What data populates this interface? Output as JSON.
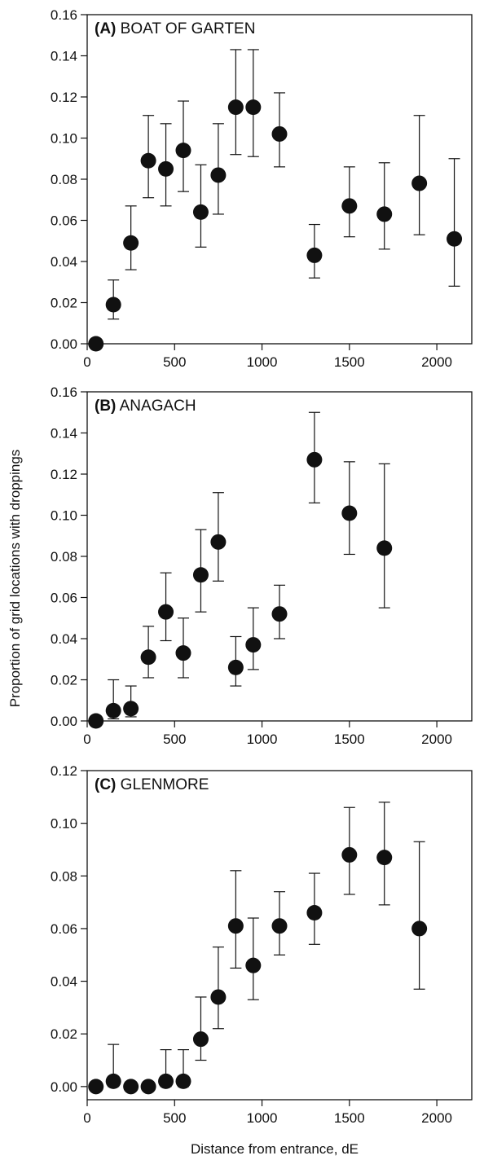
{
  "chart_data": [
    {
      "type": "scatter",
      "panel_letter": "(A)",
      "panel_name": "BOAT OF GARTEN",
      "xlim": [
        0,
        2200
      ],
      "ylim": [
        0,
        0.16
      ],
      "x_ticks": [
        0,
        500,
        1000,
        1500,
        2000
      ],
      "x_tick_labels": [
        "0",
        "500",
        "1000",
        "1500",
        "2000"
      ],
      "y_ticks": [
        0,
        0.02,
        0.04,
        0.06,
        0.08,
        0.1,
        0.12,
        0.14,
        0.16
      ],
      "y_tick_labels": [
        "0.00",
        "0.02",
        "0.04",
        "0.06",
        "0.08",
        "0.10",
        "0.12",
        "0.14",
        "0.16"
      ],
      "grid": false,
      "error_bars": true,
      "x": [
        50,
        150,
        250,
        350,
        450,
        550,
        650,
        750,
        850,
        950,
        1100,
        1300,
        1500,
        1700,
        1900,
        2100
      ],
      "y": [
        0.0,
        0.019,
        0.049,
        0.089,
        0.085,
        0.094,
        0.064,
        0.082,
        0.115,
        0.115,
        0.102,
        0.043,
        0.067,
        0.063,
        0.078,
        0.051
      ],
      "y_low": [
        0.0,
        0.012,
        0.036,
        0.071,
        0.067,
        0.074,
        0.047,
        0.063,
        0.092,
        0.091,
        0.086,
        0.032,
        0.052,
        0.046,
        0.053,
        0.028
      ],
      "y_high": [
        0.0,
        0.031,
        0.067,
        0.111,
        0.107,
        0.118,
        0.087,
        0.107,
        0.143,
        0.143,
        0.122,
        0.058,
        0.086,
        0.088,
        0.111,
        0.09
      ]
    },
    {
      "type": "scatter",
      "panel_letter": "(B)",
      "panel_name": "ANAGACH",
      "xlim": [
        0,
        2200
      ],
      "ylim": [
        0,
        0.16
      ],
      "x_ticks": [
        0,
        500,
        1000,
        1500,
        2000
      ],
      "x_tick_labels": [
        "0",
        "500",
        "1000",
        "1500",
        "2000"
      ],
      "y_ticks": [
        0,
        0.02,
        0.04,
        0.06,
        0.08,
        0.1,
        0.12,
        0.14,
        0.16
      ],
      "y_tick_labels": [
        "0.00",
        "0.02",
        "0.04",
        "0.06",
        "0.08",
        "0.10",
        "0.12",
        "0.14",
        "0.16"
      ],
      "grid": false,
      "error_bars": true,
      "x": [
        50,
        150,
        250,
        350,
        450,
        550,
        650,
        750,
        850,
        950,
        1100,
        1300,
        1500,
        1700
      ],
      "y": [
        0.0,
        0.005,
        0.006,
        0.031,
        0.053,
        0.033,
        0.071,
        0.087,
        0.026,
        0.037,
        0.052,
        0.127,
        0.101,
        0.084
      ],
      "y_low": [
        0.0,
        0.001,
        0.002,
        0.021,
        0.039,
        0.021,
        0.053,
        0.068,
        0.017,
        0.025,
        0.04,
        0.106,
        0.081,
        0.055
      ],
      "y_high": [
        0.0,
        0.02,
        0.017,
        0.046,
        0.072,
        0.05,
        0.093,
        0.111,
        0.041,
        0.055,
        0.066,
        0.15,
        0.126,
        0.125
      ]
    },
    {
      "type": "scatter",
      "panel_letter": "(C)",
      "panel_name": "GLENMORE",
      "xlim": [
        0,
        2200
      ],
      "ylim": [
        -0.005,
        0.12
      ],
      "x_ticks": [
        0,
        500,
        1000,
        1500,
        2000
      ],
      "x_tick_labels": [
        "0",
        "500",
        "1000",
        "1500",
        "2000"
      ],
      "y_ticks": [
        0,
        0.02,
        0.04,
        0.06,
        0.08,
        0.1,
        0.12
      ],
      "y_tick_labels": [
        "0.00",
        "0.02",
        "0.04",
        "0.06",
        "0.08",
        "0.10",
        "0.12"
      ],
      "grid": false,
      "error_bars": true,
      "x": [
        50,
        150,
        250,
        350,
        450,
        550,
        650,
        750,
        850,
        950,
        1100,
        1300,
        1500,
        1700,
        1900
      ],
      "y": [
        0.0,
        0.002,
        0.0,
        0.0,
        0.002,
        0.002,
        0.018,
        0.034,
        0.061,
        0.046,
        0.061,
        0.066,
        0.088,
        0.087,
        0.06
      ],
      "y_low": [
        0.0,
        0.0,
        0.0,
        0.0,
        0.0,
        0.0,
        0.01,
        0.022,
        0.045,
        0.033,
        0.05,
        0.054,
        0.073,
        0.069,
        0.037
      ],
      "y_high": [
        0.0,
        0.016,
        0.0,
        0.0,
        0.014,
        0.014,
        0.034,
        0.053,
        0.082,
        0.064,
        0.074,
        0.081,
        0.106,
        0.108,
        0.093
      ]
    }
  ],
  "ylabel": "Proportion of grid locations with droppings",
  "xlabel": "Distance from entrance, dE"
}
